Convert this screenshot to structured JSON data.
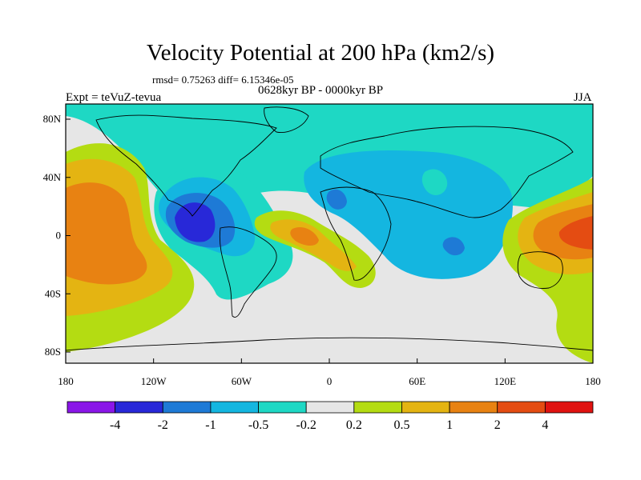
{
  "title": "Velocity Potential at 200 hPa (km2/s)",
  "stats_text": "rmsd= 0.75263 diff= 6.15346e-05",
  "period_text": "0628kyr BP - 0000kyr BP",
  "left_label": "Expt = teVuZ-tevua",
  "right_label": "JJA",
  "axes": {
    "y_ticks": [
      "80N",
      "40N",
      "0",
      "40S",
      "80S"
    ],
    "x_ticks": [
      "180",
      "120W",
      "60W",
      "0",
      "60E",
      "120E",
      "180"
    ]
  },
  "colorbar": {
    "labels": [
      "-4",
      "-2",
      "-1",
      "-0.5",
      "-0.2",
      "0.2",
      "0.5",
      "1",
      "2",
      "4"
    ],
    "colors": [
      "#8a16e8",
      "#2828d8",
      "#1e7ad6",
      "#14b6e0",
      "#1ed8c4",
      "#e6e6e6",
      "#b4dc12",
      "#e4b412",
      "#e88212",
      "#e44c12",
      "#e01210"
    ]
  },
  "colors": {
    "neutral": "#e6e6e6",
    "coast": "#000000"
  }
}
